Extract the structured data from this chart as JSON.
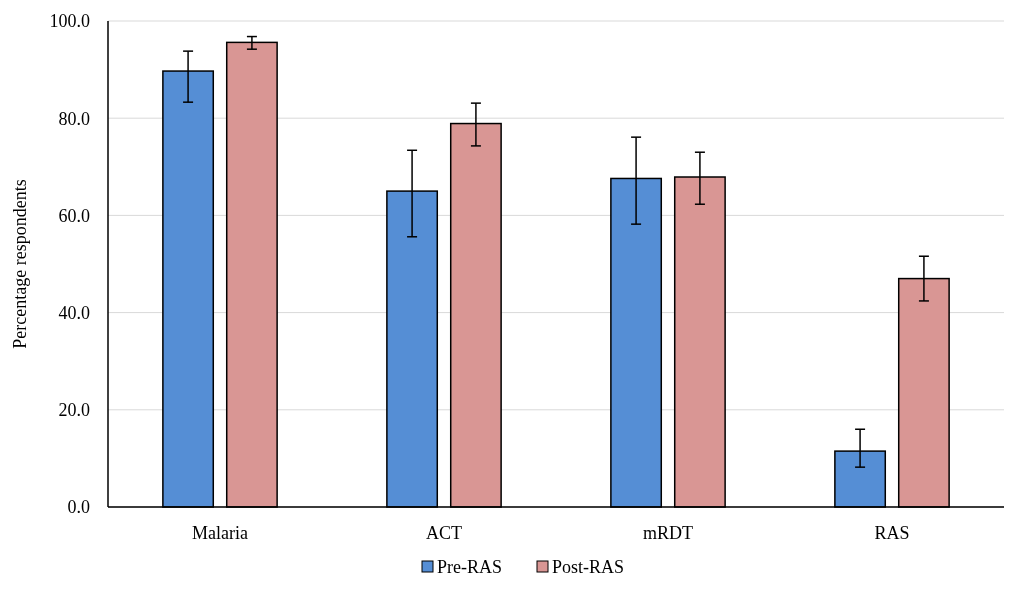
{
  "chart_data": {
    "type": "bar",
    "ylabel": "Percentage respondents",
    "categories": [
      "Malaria",
      "ACT",
      "mRDT",
      "RAS"
    ],
    "series": [
      {
        "name": "Pre-RAS",
        "color": "#558ed5",
        "values": [
          89.7,
          65.0,
          67.6,
          11.5
        ],
        "errors": [
          [
            83.3,
            93.8
          ],
          [
            55.6,
            73.4
          ],
          [
            58.2,
            76.1
          ],
          [
            8.2,
            16.0
          ]
        ]
      },
      {
        "name": "Post-RAS",
        "color": "#d99694",
        "values": [
          95.6,
          78.9,
          67.9,
          47.0
        ],
        "errors": [
          [
            94.2,
            96.8
          ],
          [
            74.3,
            83.1
          ],
          [
            62.3,
            73.0
          ],
          [
            42.4,
            51.6
          ]
        ]
      }
    ],
    "ylim": [
      0,
      100
    ],
    "yticks": [
      {
        "value": 0,
        "label": "0.0"
      },
      {
        "value": 20,
        "label": "20.0"
      },
      {
        "value": 40,
        "label": "40.0"
      },
      {
        "value": 60,
        "label": "60.0"
      },
      {
        "value": 80,
        "label": "80.0"
      },
      {
        "value": 100,
        "label": "100.0"
      }
    ],
    "grid": "y",
    "legend": "bottom"
  }
}
